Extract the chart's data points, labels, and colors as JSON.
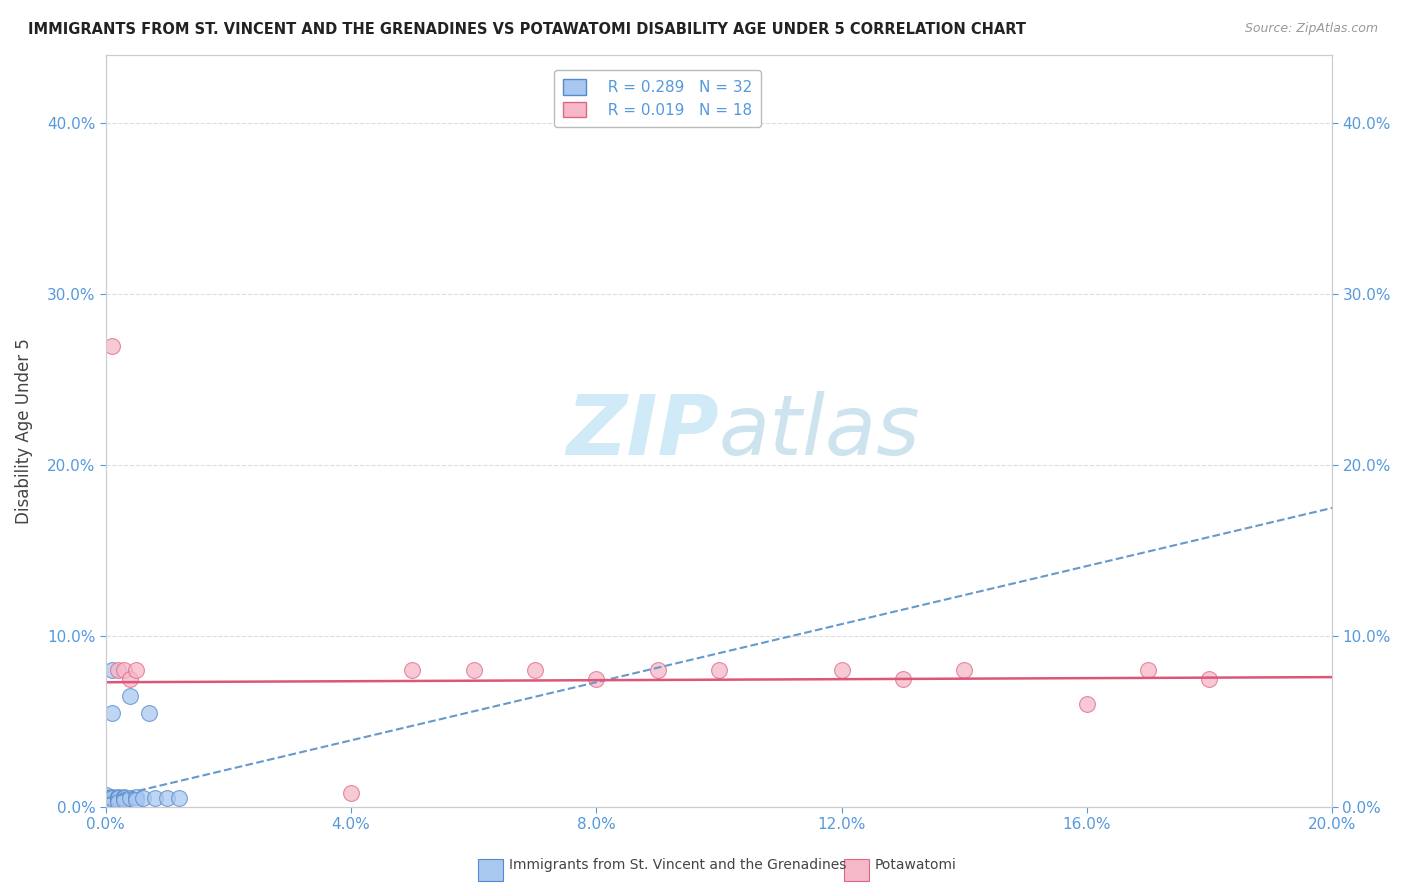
{
  "title": "IMMIGRANTS FROM ST. VINCENT AND THE GRENADINES VS POTAWATOMI DISABILITY AGE UNDER 5 CORRELATION CHART",
  "source": "Source: ZipAtlas.com",
  "ylabel": "Disability Age Under 5",
  "xlim": [
    0.0,
    0.2
  ],
  "ylim": [
    0.0,
    0.44
  ],
  "legend_blue_r": "R = 0.289",
  "legend_blue_n": "N = 32",
  "legend_pink_r": "R = 0.019",
  "legend_pink_n": "N = 18",
  "blue_color": "#a8c8f0",
  "pink_color": "#f5b8c8",
  "blue_edge_color": "#5588cc",
  "pink_edge_color": "#e06688",
  "blue_trend_color": "#6699cc",
  "pink_trend_color": "#dd5577",
  "watermark_color": "#cce8f8",
  "grid_color": "#dddddd",
  "bg_color": "#ffffff",
  "tick_color": "#5599dd",
  "title_color": "#222222",
  "label_color": "#444444",
  "blue_scatter_x": [
    0.0,
    0.0,
    0.0,
    0.0,
    0.0,
    0.0,
    0.0,
    0.0,
    0.001,
    0.001,
    0.001,
    0.001,
    0.001,
    0.001,
    0.001,
    0.002,
    0.002,
    0.002,
    0.002,
    0.002,
    0.003,
    0.003,
    0.003,
    0.004,
    0.004,
    0.005,
    0.005,
    0.006,
    0.007,
    0.008,
    0.01,
    0.012
  ],
  "blue_scatter_y": [
    0.005,
    0.004,
    0.003,
    0.006,
    0.007,
    0.004,
    0.003,
    0.005,
    0.005,
    0.006,
    0.004,
    0.003,
    0.08,
    0.055,
    0.005,
    0.005,
    0.006,
    0.004,
    0.005,
    0.003,
    0.006,
    0.005,
    0.004,
    0.065,
    0.005,
    0.006,
    0.004,
    0.005,
    0.055,
    0.005,
    0.005,
    0.005
  ],
  "pink_scatter_x": [
    0.001,
    0.002,
    0.003,
    0.004,
    0.005,
    0.04,
    0.05,
    0.06,
    0.07,
    0.08,
    0.09,
    0.1,
    0.12,
    0.13,
    0.14,
    0.16,
    0.17,
    0.18
  ],
  "pink_scatter_y": [
    0.27,
    0.08,
    0.08,
    0.075,
    0.08,
    0.008,
    0.08,
    0.08,
    0.08,
    0.075,
    0.08,
    0.08,
    0.08,
    0.075,
    0.08,
    0.06,
    0.08,
    0.075
  ],
  "blue_trend_x": [
    0.0,
    0.2
  ],
  "blue_trend_y": [
    0.005,
    0.175
  ],
  "pink_trend_x": [
    0.0,
    0.2
  ],
  "pink_trend_y": [
    0.073,
    0.076
  ],
  "yticks": [
    0.0,
    0.1,
    0.2,
    0.3,
    0.4
  ],
  "xticks": [
    0.0,
    0.04,
    0.08,
    0.12,
    0.16,
    0.2
  ]
}
